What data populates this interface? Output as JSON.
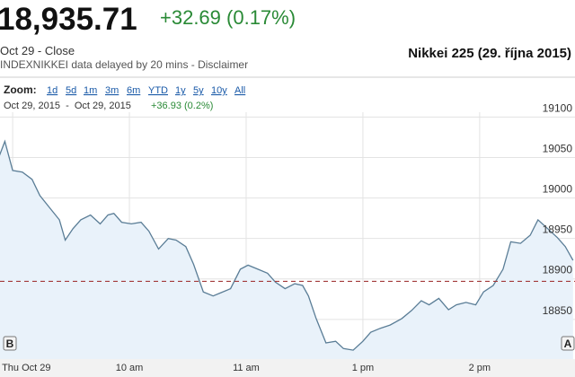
{
  "header": {
    "price": "18,935.71",
    "change": "+32.69 (0.17%)",
    "close_label": "Oct 29 - Close",
    "source": "INDEXNIKKEI data delayed by 20 mins - Disclaimer",
    "chart_name": "Nikkei 225 (29. října 2015)"
  },
  "zoom": {
    "label": "Zoom:",
    "options": [
      "1d",
      "5d",
      "1m",
      "3m",
      "6m",
      "YTD",
      "1y",
      "5y",
      "10y",
      "All"
    ]
  },
  "range": {
    "dates": "Oct 29, 2015  -  Oct 29, 2015",
    "change": "+36.93 (0.2%)"
  },
  "flags": [
    "B",
    "A"
  ],
  "chart_data": {
    "type": "line",
    "x": [
      -7,
      -4,
      0,
      5,
      10,
      14,
      19,
      24,
      27,
      31,
      35,
      40,
      45,
      49,
      52,
      56,
      61,
      66,
      70,
      75,
      80,
      84,
      89,
      93,
      98,
      103,
      107,
      112,
      117,
      121,
      126,
      131,
      135,
      140,
      145,
      149,
      152,
      156,
      161,
      166,
      170,
      175,
      180,
      184,
      189,
      194,
      200,
      205,
      210,
      214,
      219,
      224,
      228,
      233,
      238,
      242,
      247,
      252,
      256,
      261,
      266,
      270,
      275,
      280,
      284,
      288
    ],
    "values": [
      19051,
      19070,
      19034,
      19032,
      19023,
      19003,
      18988,
      18973,
      18948,
      18962,
      18973,
      18979,
      18968,
      18979,
      18981,
      18970,
      18968,
      18970,
      18959,
      18937,
      18950,
      18948,
      18940,
      18918,
      18884,
      18879,
      18883,
      18888,
      18912,
      18917,
      18912,
      18907,
      18896,
      18888,
      18894,
      18892,
      18879,
      18851,
      18821,
      18823,
      18814,
      18812,
      18823,
      18834,
      18839,
      18843,
      18851,
      18861,
      18873,
      18868,
      18876,
      18862,
      18868,
      18871,
      18868,
      18884,
      18892,
      18912,
      18946,
      18944,
      18954,
      18973,
      18962,
      18951,
      18940,
      18923
    ],
    "color": "#5a7d96",
    "fill": "#e9f2fa",
    "xlim": [
      -6.5,
      289
    ],
    "xticks": [
      {
        "value": 0,
        "label": "Thu Oct 29"
      },
      {
        "value": 60,
        "label": "10 am"
      },
      {
        "value": 120,
        "label": "11 am"
      },
      {
        "value": 180,
        "label": "1 pm"
      },
      {
        "value": 240,
        "label": "2 pm"
      }
    ],
    "ylim": [
      18801,
      19106
    ],
    "yticks": [
      18850,
      18900,
      18950,
      19000,
      19050,
      19100
    ],
    "grid": true,
    "ref_line": {
      "value": 18897,
      "color": "#a33a3a"
    }
  }
}
